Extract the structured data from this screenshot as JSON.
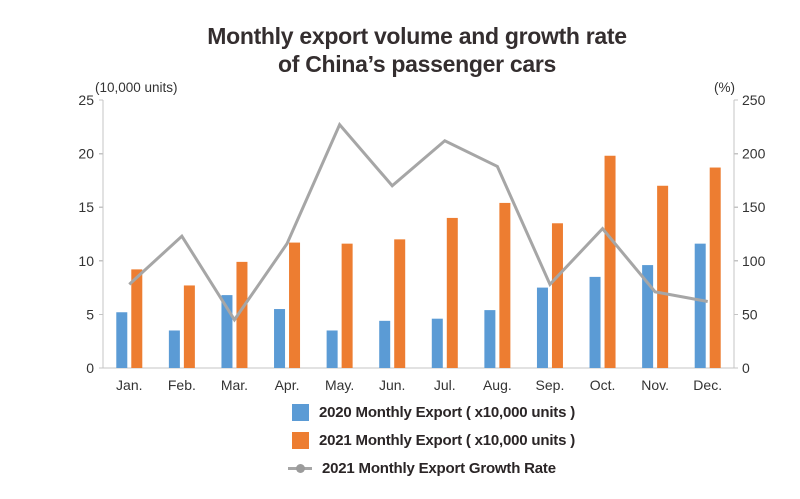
{
  "title": {
    "line1": "Monthly export volume and growth rate",
    "line2": "of China’s passenger cars"
  },
  "chart_data": {
    "type": "bar",
    "subtype": "combo-bar-line-dual-axis",
    "title": "Monthly export volume and growth rate of China’s passenger cars",
    "categories": [
      "Jan.",
      "Feb.",
      "Mar.",
      "Apr.",
      "May.",
      "Jun.",
      "Jul.",
      "Aug.",
      "Sep.",
      "Oct.",
      "Nov.",
      "Dec."
    ],
    "series": [
      {
        "name": "2020 Monthly Export ( x10,000 units )",
        "type": "bar",
        "axis": "left",
        "color": "#5B9BD5",
        "values": [
          5.2,
          3.5,
          6.8,
          5.5,
          3.5,
          4.4,
          4.6,
          5.4,
          7.5,
          8.5,
          9.6,
          11.6
        ]
      },
      {
        "name": "2021 Monthly Export ( x10,000 units )",
        "type": "bar",
        "axis": "left",
        "color": "#ED7D31",
        "values": [
          9.2,
          7.7,
          9.9,
          11.7,
          11.6,
          12.0,
          14.0,
          15.4,
          13.5,
          19.8,
          17.0,
          18.7
        ]
      },
      {
        "name": "2021 Monthly Export Growth Rate",
        "type": "line",
        "axis": "right",
        "color": "#A6A6A6",
        "values": [
          78,
          123,
          45,
          116,
          227,
          170,
          212,
          188,
          78,
          130,
          71,
          62
        ]
      }
    ],
    "left_axis": {
      "label": "(10,000 units)",
      "min": 0,
      "max": 25,
      "step": 5,
      "ticks": [
        0,
        5,
        10,
        15,
        20,
        25
      ]
    },
    "right_axis": {
      "label": "(%)",
      "min": 0,
      "max": 250,
      "step": 50,
      "ticks": [
        0,
        50,
        100,
        150,
        200,
        250
      ]
    },
    "grid": false,
    "legend_position": "bottom",
    "colors": {
      "axis_line": "#C4C4C4",
      "tick_text": "#333333",
      "title_text": "#342e2f",
      "line_marker_dot": "#9B9B9B"
    }
  },
  "legend": {
    "items": [
      {
        "label": "2020 Monthly Export ( x10,000 units )",
        "marker": "square",
        "color": "#5B9BD5"
      },
      {
        "label": "2021 Monthly Export ( x10,000 units )",
        "marker": "square",
        "color": "#ED7D31"
      },
      {
        "label": "2021 Monthly Export Growth Rate",
        "marker": "line",
        "color": "#A6A6A6"
      }
    ]
  }
}
